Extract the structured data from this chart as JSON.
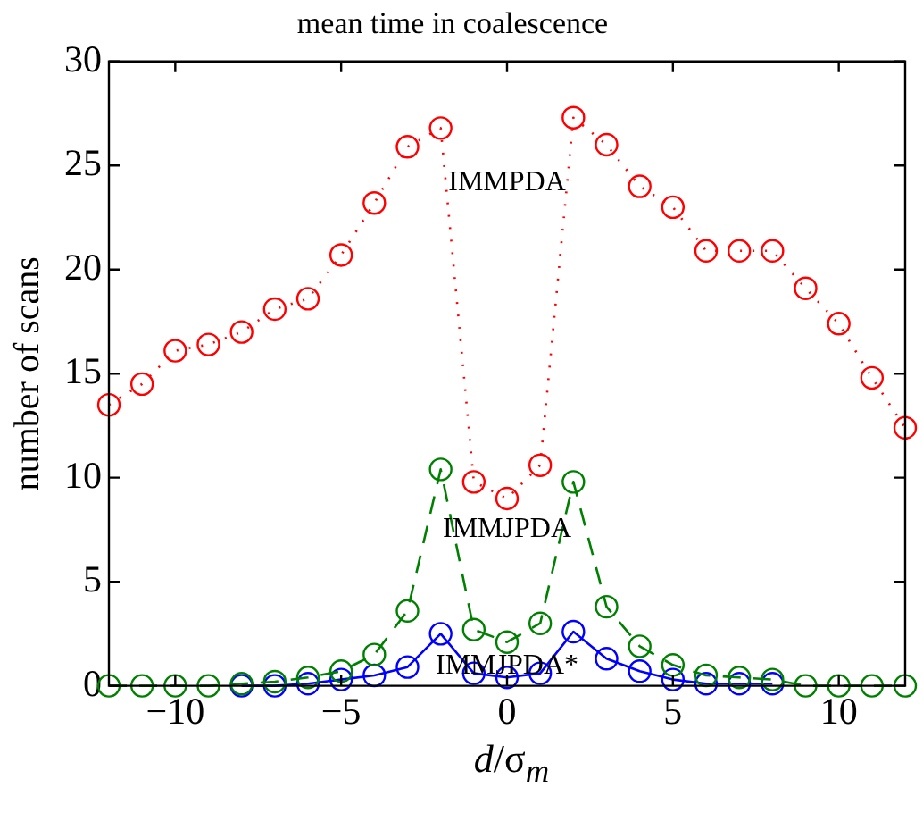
{
  "chart_data": {
    "type": "line",
    "title": "mean time in coalescence",
    "xlabel": "d/σ$_{m}$",
    "ylabel": "number of scans",
    "x": [
      -12,
      -11,
      -10,
      -9,
      -8,
      -7,
      -6,
      -5,
      -4,
      -3,
      -2,
      -1,
      0,
      1,
      2,
      3,
      4,
      5,
      6,
      7,
      8,
      9,
      10,
      11,
      12
    ],
    "series": [
      {
        "color": "#ff0000",
        "line_style": "dotted",
        "values": [
          13.5,
          14.5,
          16.1,
          16.4,
          17,
          18.1,
          18.6,
          20.7,
          23.2,
          25.9,
          26.8,
          9.8,
          9,
          10.6,
          27.3,
          26,
          24,
          23,
          20.9,
          20.9,
          20.9,
          19.1,
          17.4,
          14.8,
          12.4
        ]
      },
      {
        "color": "#008000",
        "line_style": "dashed",
        "values": [
          0,
          0,
          0,
          0,
          0.1,
          0.2,
          0.4,
          0.7,
          1.5,
          3.6,
          10.4,
          2.7,
          2.1,
          3,
          9.8,
          3.8,
          1.9,
          1,
          0.5,
          0.4,
          0.3,
          0,
          0,
          0,
          0
        ]
      },
      {
        "color": "#0000ff",
        "line_style": "solid",
        "values": [
          null,
          null,
          null,
          null,
          0,
          0,
          0.1,
          0.3,
          0.5,
          0.9,
          2.5,
          0.6,
          0.4,
          0.6,
          2.6,
          1.3,
          0.7,
          0.3,
          0.1,
          0.1,
          0.1,
          null,
          null,
          null,
          null
        ]
      }
    ],
    "xlim": [
      -12,
      12
    ],
    "xticks": [
      -10,
      -5,
      0,
      5,
      10
    ],
    "ylim": [
      0,
      30
    ],
    "yticks": [
      0,
      5,
      10,
      15,
      20,
      25,
      30
    ],
    "grid": false,
    "legend": false,
    "marker": "circle",
    "annotations": [
      "IMMPDA",
      "IMMJPDA",
      "IMMJPDA*"
    ]
  }
}
